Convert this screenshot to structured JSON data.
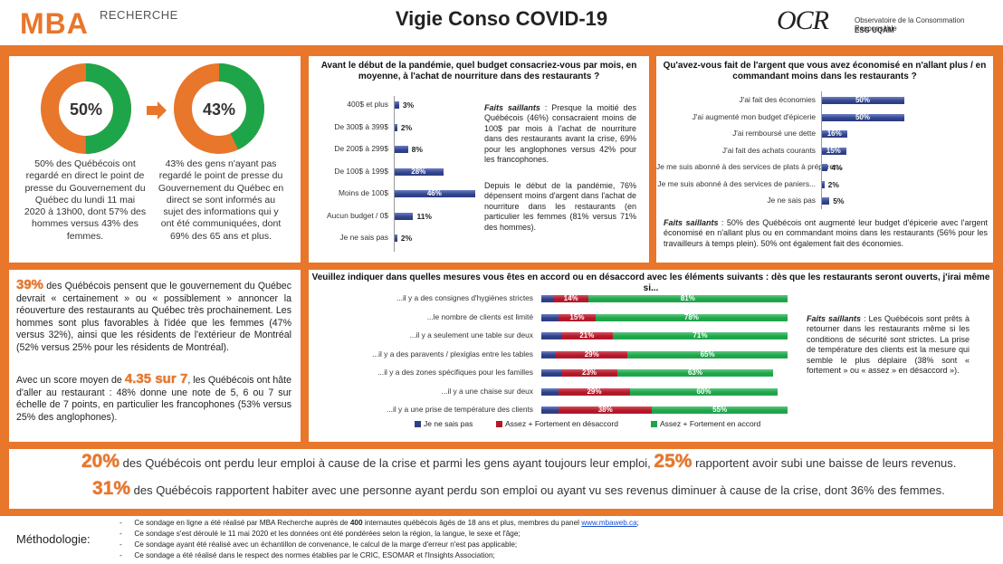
{
  "header": {
    "logo_left_big": "MBA",
    "logo_left_small": "RECHERCHE",
    "title": "Vigie Conso COVID-19",
    "logo_right_big": "OCR",
    "logo_right_line1": "Observatoire de la Consommation Responsable",
    "logo_right_line2": "ESG UQÀM"
  },
  "colors": {
    "orange": "#e8762b",
    "green": "#1ea54a",
    "red": "#b3182a",
    "blue": "#2d3f86"
  },
  "donuts": [
    {
      "value": 50,
      "label": "50%",
      "text": "50% des Québécois ont regardé en direct le point de presse du Gouvernement du Québec du lundi 11 mai 2020 à 13h00, dont 57% des hommes versus 43% des femmes."
    },
    {
      "value": 43,
      "label": "43%",
      "text": "43% des gens n'ayant pas regardé le point de presse du Gouvernement du Québec en direct se sont informés au sujet des informations qui y ont été communiquées, dont 69% des 65 ans et plus."
    }
  ],
  "chart_data": [
    {
      "type": "bar",
      "title": "Avant le début de la pandémie, quel budget consacriez-vous par mois, en moyenne, à l'achat de nourriture dans des restaurants ?",
      "categories": [
        "400$ et plus",
        "De 300$ à 399$",
        "De 200$ à 299$",
        "De 100$ à 199$",
        "Moins de 100$",
        "Aucun budget / 0$",
        "Je ne sais pas"
      ],
      "values": [
        3,
        2,
        8,
        28,
        46,
        11,
        2
      ],
      "labels": [
        "3%",
        "2%",
        "8%",
        "28%",
        "46%",
        "11%",
        "2%"
      ]
    },
    {
      "type": "bar",
      "title": "Qu'avez-vous fait de l'argent que vous avez économisé en n'allant plus / en commandant moins dans les restaurants ?",
      "categories": [
        "J'ai fait des économies",
        "J'ai augmenté mon budget d'épicerie",
        "J'ai remboursé une dette",
        "J'ai fait des achats courants",
        "Je me suis abonné à des services de plats à préparer...",
        "Je me suis abonné à des services de paniers...",
        "Je ne sais pas"
      ],
      "values": [
        50,
        50,
        16,
        15,
        4,
        2,
        5
      ],
      "labels": [
        "50%",
        "50%",
        "16%",
        "15%",
        "4%",
        "2%",
        "5%"
      ]
    },
    {
      "type": "bar",
      "title": "Veuillez indiquer dans quelles mesures vous êtes en accord ou en désaccord avec les éléments suivants : dès que les restaurants seront ouverts, j'irai même si...",
      "categories": [
        "...il y a des consignes d'hygiènes strictes",
        "...le nombre de clients est limité",
        "...il y a seulement une table sur deux",
        "...il y a des paravents / plexiglas entre les tables",
        "...il y a des zones spécifiques pour les familles",
        "...il y a une chaise sur deux",
        "...il y a une prise de température des clients"
      ],
      "series": [
        {
          "name": "Je ne sais pas",
          "values": [
            5,
            7,
            8,
            6,
            8,
            7,
            7
          ]
        },
        {
          "name": "Assez + Fortement en désaccord",
          "values": [
            14,
            15,
            21,
            29,
            23,
            29,
            38
          ],
          "labels": [
            "14%",
            "15%",
            "21%",
            "29%",
            "23%",
            "29%",
            "38%"
          ]
        },
        {
          "name": "Assez + Fortement en accord",
          "values": [
            81,
            78,
            71,
            65,
            63,
            60,
            55
          ],
          "labels": [
            "81%",
            "78%",
            "71%",
            "65%",
            "63%",
            "60%",
            "55%"
          ]
        }
      ]
    }
  ],
  "q1_fs": {
    "p1_bold": "Faits saillants",
    "p1": " : Presque la moitié des Québécois (46%) consacraient moins de 100$ par mois à l'achat de nourriture dans des restaurants avant la crise, 69% pour les anglophones versus 42% pour les francophones.",
    "p2": "Depuis le début de la pandémie, 76% dépensent moins d'argent dans l'achat de nourriture dans les restaurants (en particulier les femmes (81% versus 71% des hommes)."
  },
  "q2_fs": {
    "bold": "Faits saillants",
    "text": " : 50% des Québécois ont augmenté leur budget d'épicerie avec l'argent économisé en n'allant plus ou en commandant moins dans les restaurants (56% pour les travailleurs à temps plein). 50% ont également fait des économies."
  },
  "q3_fs": {
    "bold": "Faits saillants",
    "text": " : Les Québécois sont prêts à retourner dans les restaurants même si les conditions de sécurité sont strictes. La prise de température des clients est la mesure qui semble le plus déplaire (38% sont « fortement » ou « assez » en désaccord »)."
  },
  "left_text": {
    "p1_hl": "39%",
    "p1": " des Québécois pensent que le gouvernement du Québec devrait « certainement » ou « possiblement » annoncer la réouverture des restaurants au Québec très prochainement. Les hommes sont plus favorables à l'idée que les femmes (47% versus 32%), ainsi que les résidents de l'extérieur de Montréal (52% versus 25% pour les résidents de Montréal).",
    "p2_a": "Avec un score moyen de ",
    "p2_hl": "4.35 sur 7",
    "p2_b": ", les Québécois ont hâte d'aller au restaurant : 48% donne une note de 5, 6 ou 7 sur échelle de 7 points, en particulier les francophones (53% versus 25% des anglophones)."
  },
  "bottom": {
    "l1_hl1": "20%",
    "l1_a": " des Québécois ont perdu leur emploi à cause de la crise et parmi les gens ayant toujours leur emploi, ",
    "l1_hl2": "25%",
    "l1_b": " rapportent avoir subi une baisse de leurs revenus.",
    "l2_hl": "31%",
    "l2": " des Québécois rapportent habiter avec une personne ayant perdu son emploi ou ayant vu ses revenus diminuer à cause de la crise, dont 36% des femmes."
  },
  "methodology": {
    "label": "Méthodologie:",
    "line1_a": "Ce sondage en ligne a été réalisé par MBA Recherche auprès de ",
    "line1_bold": "400",
    "line1_b": " internautes québécois âgés de 18 ans et plus, membres du panel ",
    "line1_link": "www.mbaweb.ca",
    "line1_c": ";",
    "line2": "Ce sondage s'est déroulé le 11 mai 2020 et les données ont été pondérées selon la région, la langue, le sexe et l'âge;",
    "line3": "Ce sondage ayant été réalisé avec un échantillon de convenance, le calcul de la marge d'erreur n'est pas applicable;",
    "line4": "Ce sondage a été réalisé dans le respect des normes établies par le CRIC, ESOMAR et l'Insights Association;"
  }
}
